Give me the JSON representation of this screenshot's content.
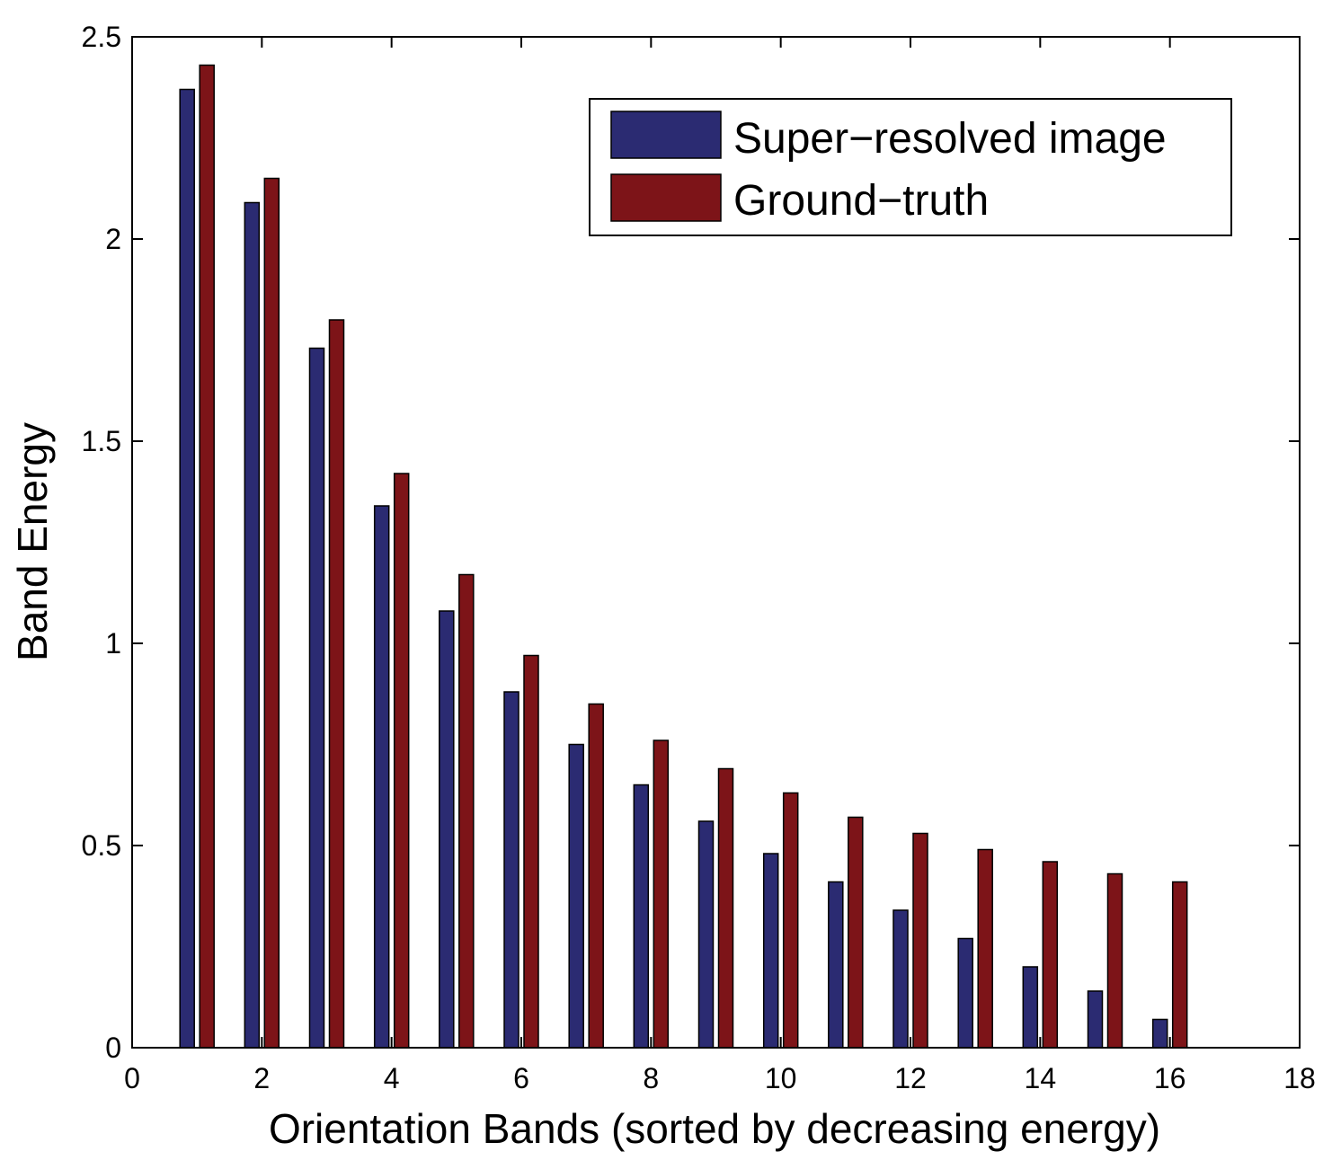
{
  "chart_data": {
    "type": "bar",
    "title": "",
    "xlabel": "Orientation Bands (sorted by decreasing energy)",
    "ylabel": "Band Energy",
    "xlim": [
      0,
      18
    ],
    "ylim": [
      0,
      2.5
    ],
    "xticks": [
      0,
      2,
      4,
      6,
      8,
      10,
      12,
      14,
      16,
      18
    ],
    "yticks": [
      0,
      0.5,
      1,
      1.5,
      2,
      2.5
    ],
    "xtick_labels": [
      "0",
      "2",
      "4",
      "6",
      "8",
      "10",
      "12",
      "14",
      "16",
      "18"
    ],
    "ytick_labels": [
      "0",
      "0.5",
      "1",
      "1.5",
      "2",
      "2.5"
    ],
    "grid": false,
    "legend_position": "top-right",
    "categories": [
      1,
      2,
      3,
      4,
      5,
      6,
      7,
      8,
      9,
      10,
      11,
      12,
      13,
      14,
      15,
      16
    ],
    "series": [
      {
        "name": "Super−resolved image",
        "color": "#2b2b72",
        "values": [
          2.37,
          2.09,
          1.73,
          1.34,
          1.08,
          0.88,
          0.75,
          0.65,
          0.56,
          0.48,
          0.41,
          0.34,
          0.27,
          0.2,
          0.14,
          0.07
        ]
      },
      {
        "name": "Ground−truth",
        "color": "#7d1418",
        "values": [
          2.43,
          2.15,
          1.8,
          1.42,
          1.17,
          0.97,
          0.85,
          0.76,
          0.69,
          0.63,
          0.57,
          0.53,
          0.49,
          0.46,
          0.43,
          0.41
        ]
      }
    ]
  }
}
